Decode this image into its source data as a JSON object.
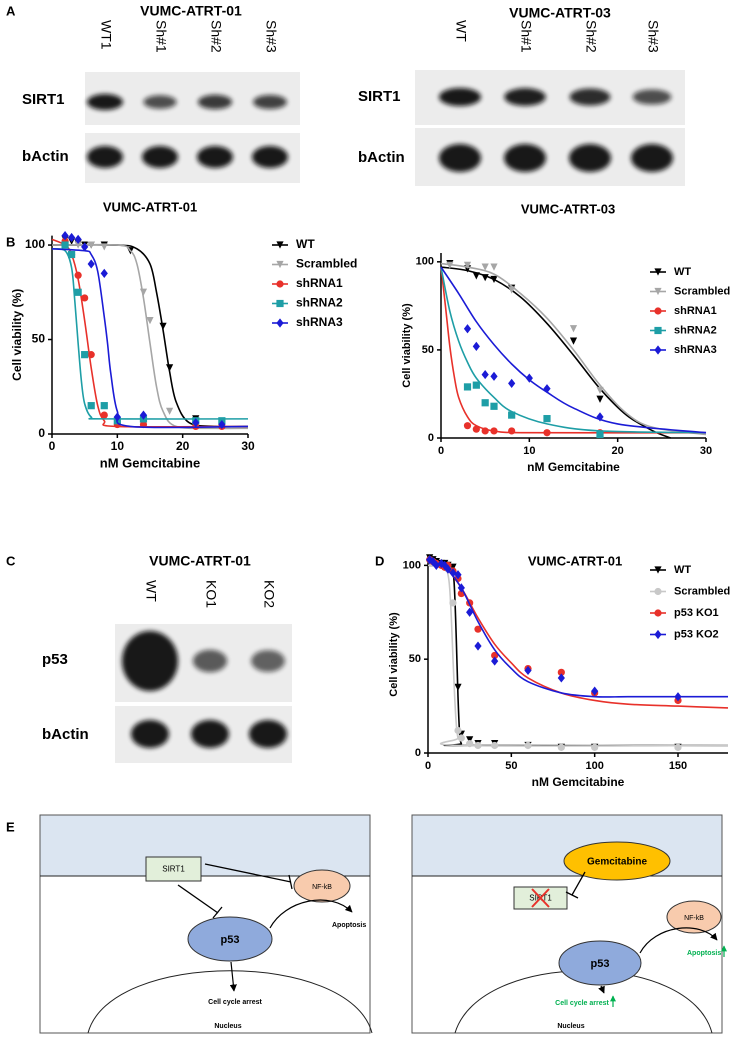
{
  "panel_labels": [
    "A",
    "B",
    "C",
    "D",
    "E"
  ],
  "panel_a": [
    {
      "title": "VUMC-ATRT-01",
      "lanes": [
        "WT1",
        "Sh#1",
        "Sh#2",
        "Sh#3"
      ],
      "rows": [
        "SIRT1",
        "bActin"
      ]
    },
    {
      "title": "VUMC-ATRT-03",
      "lanes": [
        "WT",
        "Sh#1",
        "Sh#2",
        "Sh#3"
      ],
      "rows": [
        "SIRT1",
        "bActin"
      ]
    }
  ],
  "panel_c": {
    "title": "VUMC-ATRT-01",
    "lanes": [
      "WT",
      "KO1",
      "KO2"
    ],
    "rows": [
      "p53",
      "bActin"
    ]
  },
  "chart_data": [
    {
      "type": "scatter",
      "title": "VUMC-ATRT-01",
      "x_label": "nM Gemcitabine",
      "y_label": "Cell viability (%)",
      "xlim": [
        0,
        30
      ],
      "ylim": [
        0,
        105
      ],
      "xticks": [
        0,
        10,
        20,
        30
      ],
      "yticks": [
        0,
        50,
        100
      ],
      "legend": "upper right",
      "series": [
        {
          "name": "WT",
          "color": "#000000",
          "marker": "triangle-down",
          "x": [
            2,
            3,
            4,
            5,
            6,
            8,
            12,
            17,
            18,
            22,
            26
          ],
          "values": [
            103,
            102,
            101,
            100,
            100,
            100,
            97,
            57,
            35,
            8,
            6
          ],
          "fit_x": [
            0,
            10,
            13,
            15,
            16,
            17,
            18,
            19,
            21,
            25,
            30
          ],
          "fit_values": [
            100,
            100,
            98,
            90,
            75,
            55,
            33,
            17,
            6,
            4,
            4
          ]
        },
        {
          "name": "Scrambled",
          "color": "#a6a6a6",
          "marker": "triangle-down",
          "x": [
            4,
            6,
            8,
            14,
            15,
            18,
            22,
            26
          ],
          "values": [
            100,
            100,
            99,
            75,
            60,
            12,
            5,
            4
          ],
          "fit_x": [
            0,
            10,
            12,
            13,
            14,
            15,
            16,
            17,
            19,
            25,
            30
          ],
          "fit_values": [
            100,
            100,
            97,
            90,
            72,
            48,
            25,
            12,
            4,
            3,
            3
          ]
        },
        {
          "name": "shRNA1",
          "color": "#e8312a",
          "marker": "circle",
          "x": [
            2,
            3,
            4,
            5,
            6,
            8,
            10,
            14,
            22,
            26
          ],
          "values": [
            102,
            95,
            84,
            72,
            42,
            10,
            5,
            5,
            4,
            4
          ],
          "fit_x": [
            0,
            2,
            3,
            4,
            5,
            6,
            7,
            8,
            10,
            30
          ],
          "fit_values": [
            103,
            100,
            95,
            82,
            60,
            35,
            15,
            7,
            4,
            4
          ]
        },
        {
          "name": "shRNA2",
          "color": "#1e9ea6",
          "marker": "square",
          "x": [
            2,
            3,
            4,
            5,
            6,
            8,
            10,
            14,
            22,
            26
          ],
          "values": [
            100,
            95,
            75,
            42,
            15,
            15,
            7,
            8,
            7,
            7
          ],
          "fit_x": [
            0,
            2,
            3,
            3.5,
            4,
            4.5,
            5,
            6,
            8,
            30
          ],
          "fit_values": [
            98,
            97,
            88,
            70,
            48,
            28,
            16,
            9,
            8,
            8
          ]
        },
        {
          "name": "shRNA3",
          "color": "#1b1bd6",
          "marker": "diamond",
          "x": [
            2,
            3,
            4,
            5,
            6,
            8,
            10,
            14,
            22,
            26
          ],
          "values": [
            105,
            104,
            103,
            99,
            90,
            85,
            9,
            10,
            6,
            5
          ],
          "fit_x": [
            0,
            5,
            6,
            7,
            8,
            8.5,
            9,
            10,
            12,
            30
          ],
          "fit_values": [
            98,
            97,
            95,
            86,
            62,
            48,
            32,
            12,
            4,
            4
          ]
        }
      ]
    },
    {
      "type": "scatter",
      "title": "VUMC-ATRT-03",
      "x_label": "nM Gemcitabine",
      "y_label": "Cell viability (%)",
      "xlim": [
        0,
        30
      ],
      "ylim": [
        0,
        105
      ],
      "xticks": [
        0,
        10,
        20,
        30
      ],
      "yticks": [
        0,
        50,
        100
      ],
      "legend": "upper right",
      "series": [
        {
          "name": "WT",
          "color": "#000000",
          "marker": "triangle-down",
          "x": [
            1,
            3,
            4,
            5,
            6,
            8,
            15,
            18
          ],
          "values": [
            99,
            96,
            92,
            91,
            90,
            85,
            55,
            22
          ],
          "fit_x": [
            0,
            3,
            6,
            9,
            12,
            15,
            18,
            21,
            24,
            26
          ],
          "fit_values": [
            97,
            95,
            90,
            80,
            65,
            47,
            28,
            13,
            4,
            0
          ]
        },
        {
          "name": "Scrambled",
          "color": "#a6a6a6",
          "marker": "triangle-down",
          "x": [
            1,
            3,
            5,
            6,
            8,
            15,
            18
          ],
          "values": [
            98,
            98,
            97,
            97,
            84,
            62,
            27
          ],
          "fit_x": [
            0,
            3,
            6,
            9,
            12,
            15,
            18,
            21,
            24,
            30
          ],
          "fit_values": [
            99,
            97,
            93,
            82,
            68,
            50,
            30,
            14,
            6,
            2
          ]
        },
        {
          "name": "shRNA1",
          "color": "#e8312a",
          "marker": "circle",
          "x": [
            3,
            4,
            5,
            6,
            8,
            12,
            18
          ],
          "values": [
            7,
            5,
            4,
            4,
            4,
            3,
            3
          ],
          "fit_x": [
            0,
            0.5,
            1,
            1.5,
            2,
            3,
            4,
            6,
            10,
            30
          ],
          "fit_values": [
            97,
            75,
            52,
            35,
            23,
            12,
            7,
            4,
            3,
            3
          ]
        },
        {
          "name": "shRNA2",
          "color": "#1e9ea6",
          "marker": "square",
          "x": [
            3,
            4,
            5,
            6,
            8,
            12,
            18
          ],
          "values": [
            29,
            30,
            20,
            18,
            13,
            11,
            2
          ],
          "fit_x": [
            0,
            1,
            2,
            3,
            4,
            6,
            8,
            12,
            18,
            30
          ],
          "fit_values": [
            97,
            72,
            55,
            43,
            34,
            23,
            15,
            8,
            4,
            3
          ]
        },
        {
          "name": "shRNA3",
          "color": "#1b1bd6",
          "marker": "diamond",
          "x": [
            3,
            4,
            5,
            6,
            8,
            10,
            12,
            18
          ],
          "values": [
            62,
            52,
            36,
            35,
            31,
            34,
            28,
            12
          ],
          "fit_x": [
            0,
            2,
            4,
            6,
            8,
            10,
            12,
            15,
            20,
            30
          ],
          "fit_values": [
            97,
            82,
            66,
            53,
            42,
            33,
            26,
            17,
            8,
            3
          ]
        }
      ]
    },
    {
      "type": "scatter",
      "title": "VUMC-ATRT-01",
      "x_label": "nM Gemcitabine",
      "y_label": "Cell viability (%)",
      "xlim": [
        0,
        180
      ],
      "ylim": [
        0,
        105
      ],
      "xticks": [
        0,
        50,
        100,
        150
      ],
      "yticks": [
        0,
        50,
        100
      ],
      "legend": "upper right",
      "series": [
        {
          "name": "WT",
          "color": "#000000",
          "marker": "triangle-down",
          "x": [
            1,
            3,
            5,
            8,
            10,
            12,
            15,
            18,
            20,
            25,
            30,
            40,
            60,
            80,
            100,
            150
          ],
          "values": [
            104,
            103,
            102,
            101,
            101,
            100,
            99,
            35,
            10,
            7,
            5,
            5,
            4,
            3,
            3,
            3
          ],
          "fit_x": [
            0,
            12,
            15,
            16,
            17,
            18,
            19,
            20,
            22,
            180
          ],
          "fit_values": [
            100,
            99,
            96,
            85,
            60,
            30,
            10,
            5,
            4,
            4
          ]
        },
        {
          "name": "Scrambled",
          "color": "#c8c8c8",
          "marker": "circle",
          "x": [
            1,
            3,
            5,
            8,
            10,
            12,
            15,
            18,
            20,
            25,
            30,
            40,
            60,
            80,
            100,
            150
          ],
          "values": [
            103,
            102,
            101,
            100,
            99,
            98,
            80,
            12,
            8,
            5,
            4,
            4,
            4,
            3,
            3,
            3
          ],
          "fit_x": [
            0,
            10,
            12,
            13,
            14,
            15,
            16,
            17,
            18,
            20,
            180
          ],
          "fit_values": [
            100,
            99,
            95,
            88,
            72,
            50,
            30,
            15,
            8,
            4,
            4
          ]
        },
        {
          "name": "p53 KO1",
          "color": "#e8312a",
          "marker": "circle",
          "x": [
            1,
            3,
            5,
            8,
            10,
            12,
            15,
            18,
            20,
            25,
            30,
            40,
            60,
            80,
            100,
            150
          ],
          "values": [
            103,
            102,
            101,
            100,
            99,
            100,
            97,
            93,
            85,
            80,
            66,
            52,
            45,
            43,
            32,
            28
          ],
          "fit_x": [
            0,
            10,
            20,
            30,
            40,
            50,
            60,
            80,
            100,
            120,
            150,
            180
          ],
          "fit_values": [
            102,
            99,
            88,
            72,
            58,
            48,
            40,
            32,
            28,
            26,
            25,
            24
          ]
        },
        {
          "name": "p53 KO2",
          "color": "#1b1bd6",
          "marker": "diamond",
          "x": [
            1,
            3,
            5,
            8,
            10,
            12,
            15,
            18,
            20,
            25,
            30,
            40,
            60,
            80,
            100,
            150
          ],
          "values": [
            103,
            102,
            100,
            101,
            100,
            98,
            96,
            95,
            88,
            75,
            57,
            49,
            44,
            40,
            33,
            30
          ],
          "fit_x": [
            0,
            10,
            20,
            30,
            40,
            50,
            60,
            80,
            100,
            120,
            150,
            180
          ],
          "fit_values": [
            102,
            99,
            88,
            70,
            55,
            45,
            38,
            32,
            30,
            30,
            30,
            30
          ]
        }
      ]
    }
  ],
  "panel_e": {
    "left": {
      "sirt1": "SIRT1",
      "nfkb": "NF-kB",
      "p53": "p53",
      "apoptosis": "Apoptosis",
      "cell_cycle": "Cell cycle arrest",
      "nucleus": "Nucleus"
    },
    "right": {
      "gemcitabine": "Gemcitabine",
      "sirt1": "SIRT1",
      "nfkb": "NF-kB",
      "p53": "p53",
      "apoptosis": "Apoptosis",
      "cell_cycle": "Cell cycle arrest",
      "nucleus": "Nucleus"
    }
  }
}
